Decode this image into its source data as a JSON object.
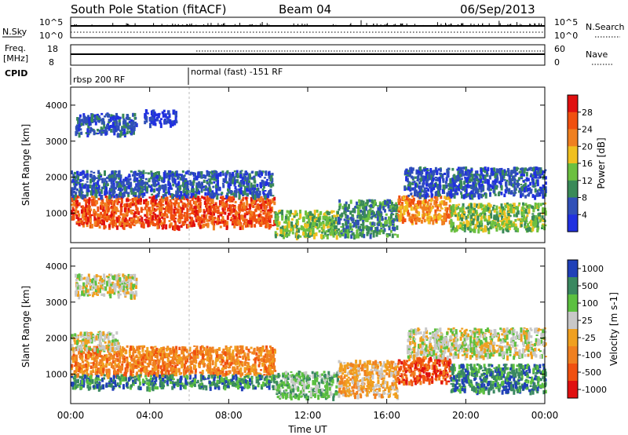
{
  "header": {
    "title": "South Pole Station (fitACF)",
    "beam": "Beam 04",
    "date": "06/Sep/2013"
  },
  "top_panels": {
    "nsky_label": "N.Sky",
    "nsky_ticks": [
      "10^5",
      "10^0"
    ],
    "nsearch_label": "N.Search",
    "nsearch_ticks": [
      "10^5",
      "10^0"
    ],
    "freq_label": "Freq.",
    "freq_unit": "[MHz]",
    "freq_ticks": [
      "18",
      "8"
    ],
    "nave_label": "Nave",
    "nave_ticks": [
      "60",
      "0"
    ],
    "cpid_label": "CPID",
    "cpid_segments": [
      {
        "label": "rbsp 200 RF",
        "start_hour": 0
      },
      {
        "label": "normal (fast) -151 RF",
        "start_hour": 6
      }
    ]
  },
  "chart_data": [
    {
      "type": "heatmap",
      "name": "power",
      "ylabel": "Slant Range [km]",
      "yticks": [
        1000,
        2000,
        3000,
        4000
      ],
      "ylim": [
        180,
        4500
      ],
      "xlim_hours": [
        0,
        24
      ],
      "colorbar_label": "Power [dB]",
      "colorbar_ticks": [
        "4",
        "8",
        "12",
        "16",
        "20",
        "24",
        "28"
      ],
      "colors": [
        "#2030e0",
        "#3050b8",
        "#3a8a58",
        "#6cc040",
        "#f0c020",
        "#f08020",
        "#f05010",
        "#e01010"
      ],
      "bands": [
        {
          "t0": 0.0,
          "t1": 10.3,
          "r0": 650,
          "r1": 1500,
          "level": 6
        },
        {
          "t0": 10.3,
          "t1": 13.5,
          "r0": 380,
          "r1": 1100,
          "level": 3
        },
        {
          "t0": 13.5,
          "t1": 16.5,
          "r0": 400,
          "r1": 1400,
          "level": 2
        },
        {
          "t0": 16.5,
          "t1": 19.2,
          "r0": 800,
          "r1": 1500,
          "level": 5
        },
        {
          "t0": 19.2,
          "t1": 24.0,
          "r0": 550,
          "r1": 1300,
          "level": 3
        },
        {
          "t0": 0.0,
          "t1": 10.2,
          "r0": 1500,
          "r1": 2200,
          "level": 1
        },
        {
          "t0": 16.8,
          "t1": 24.0,
          "r0": 1500,
          "r1": 2300,
          "level": 1
        },
        {
          "t0": 0.2,
          "t1": 3.3,
          "r0": 3200,
          "r1": 3800,
          "level": 1
        },
        {
          "t0": 3.7,
          "t1": 5.3,
          "r0": 3500,
          "r1": 3900,
          "level": 0
        }
      ]
    },
    {
      "type": "heatmap",
      "name": "velocity",
      "ylabel": "Slant Range [km]",
      "yticks": [
        1000,
        2000,
        3000,
        4000
      ],
      "ylim": [
        180,
        4500
      ],
      "xlim_hours": [
        0,
        24
      ],
      "colorbar_label": "Velocity [m s-1]",
      "colorbar_ticks": [
        "1000",
        "500",
        "100",
        "25",
        "-25",
        "-100",
        "-500",
        "-1000"
      ],
      "colors": [
        "#2040b8",
        "#3a8860",
        "#5cc040",
        "#c8c8c8",
        "#f0a020",
        "#f08020",
        "#f05010",
        "#e01010"
      ],
      "bands": [
        {
          "t0": 0.0,
          "t1": 10.3,
          "r0": 1000,
          "r1": 1800,
          "level": 5
        },
        {
          "t0": 0.0,
          "t1": 10.3,
          "r0": 650,
          "r1": 1000,
          "level": 1
        },
        {
          "t0": 10.3,
          "t1": 13.5,
          "r0": 380,
          "r1": 1100,
          "level": 2
        },
        {
          "t0": 13.5,
          "t1": 16.5,
          "r0": 400,
          "r1": 1400,
          "level": 4
        },
        {
          "t0": 16.5,
          "t1": 19.2,
          "r0": 800,
          "r1": 1500,
          "level": 6
        },
        {
          "t0": 19.2,
          "t1": 24.0,
          "r0": 550,
          "r1": 1300,
          "level": 1
        },
        {
          "t0": 0.0,
          "t1": 2.4,
          "r0": 1700,
          "r1": 2200,
          "level": 3
        },
        {
          "t0": 17.0,
          "t1": 24.0,
          "r0": 1500,
          "r1": 2300,
          "level": 3
        },
        {
          "t0": 0.2,
          "t1": 3.3,
          "r0": 3200,
          "r1": 3800,
          "level": 3
        }
      ]
    }
  ],
  "xaxis": {
    "ticks": [
      "00:00",
      "04:00",
      "08:00",
      "12:00",
      "16:00",
      "20:00",
      "00:00"
    ],
    "label": "Time UT"
  }
}
